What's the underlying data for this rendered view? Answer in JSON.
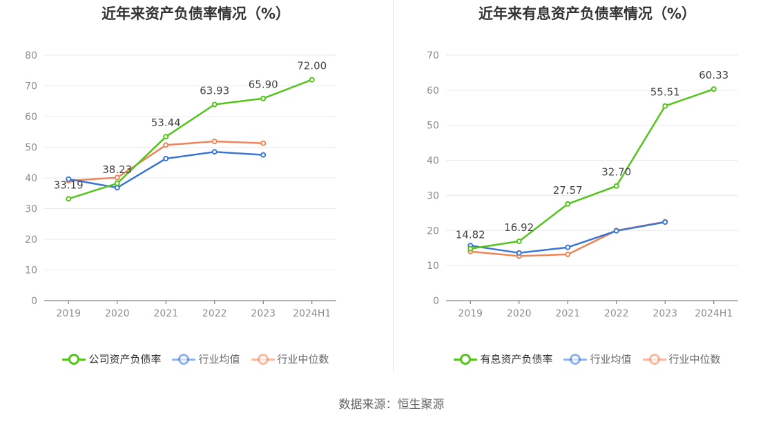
{
  "source_text": "数据来源：恒生聚源",
  "chart_data": [
    {
      "type": "line",
      "title": "近年来资产负债率情况（%）",
      "categories": [
        "2019",
        "2020",
        "2021",
        "2022",
        "2023",
        "2024H1"
      ],
      "ylim": [
        0,
        80
      ],
      "yticks": [
        0,
        10,
        20,
        30,
        40,
        50,
        60,
        70,
        80
      ],
      "grid": true,
      "legend_position": "bottom",
      "series": [
        {
          "name": "公司资产负债率",
          "color": "#52c41a",
          "values": [
            33.19,
            38.23,
            53.44,
            63.93,
            65.9,
            72.0
          ],
          "labels": [
            "33.19",
            "38.23",
            "53.44",
            "63.93",
            "65.90",
            "72.00"
          ]
        },
        {
          "name": "行业均值",
          "color": "#3a75d6",
          "values": [
            39.6,
            36.8,
            46.3,
            48.5,
            47.5,
            null
          ]
        },
        {
          "name": "行业中位数",
          "color": "#f08456",
          "values": [
            39.1,
            40.1,
            50.7,
            51.9,
            51.3,
            null
          ]
        }
      ]
    },
    {
      "type": "line",
      "title": "近年来有息资产负债率情况（%）",
      "categories": [
        "2019",
        "2020",
        "2021",
        "2022",
        "2023",
        "2024H1"
      ],
      "ylim": [
        0,
        70
      ],
      "yticks": [
        0,
        10,
        20,
        30,
        40,
        50,
        60,
        70
      ],
      "grid": true,
      "legend_position": "bottom",
      "series": [
        {
          "name": "有息资产负债率",
          "color": "#52c41a",
          "values": [
            14.82,
            16.92,
            27.57,
            32.7,
            55.51,
            60.33
          ],
          "labels": [
            "14.82",
            "16.92",
            "27.57",
            "32.70",
            "55.51",
            "60.33"
          ]
        },
        {
          "name": "行业均值",
          "color": "#3a75d6",
          "values": [
            15.7,
            13.6,
            15.2,
            19.9,
            22.4,
            null
          ]
        },
        {
          "name": "行业中位数",
          "color": "#f08456",
          "values": [
            14.0,
            12.7,
            13.2,
            20.0,
            22.5,
            null
          ]
        }
      ]
    }
  ]
}
